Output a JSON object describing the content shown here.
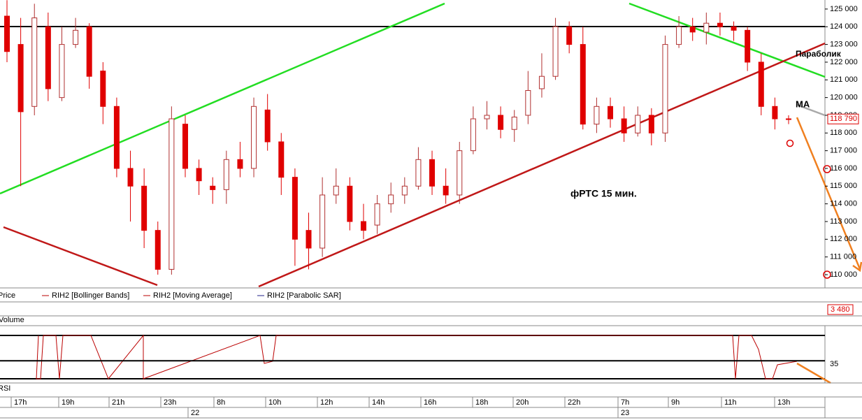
{
  "chart_data": {
    "type": "candlestick",
    "annotation": "фРТС  15 мин.",
    "labels": {
      "parabolic": "Параболик",
      "ma": "MA"
    },
    "legend": [
      "Price",
      "RIH2 [Bollinger Bands]",
      "RIH2 [Moving Average]",
      "RIH2 [Parabolic SAR]"
    ],
    "open": [
      124600,
      123000,
      119500,
      124000,
      120000,
      123000,
      124000,
      121500,
      119500,
      116000,
      115000,
      112500,
      110300,
      118500,
      116000,
      115000,
      114800,
      116500,
      116000,
      119300,
      117500,
      115500,
      112500,
      111500,
      114500,
      115000,
      113000,
      112800,
      114000,
      114500,
      115000,
      116500,
      115000,
      114500,
      117000,
      118800,
      119000,
      118200,
      119000,
      120500,
      121200,
      124000,
      123000,
      118500,
      119500,
      118800,
      118000,
      119000,
      118000,
      123000,
      124000,
      123700,
      124200,
      124000,
      123800,
      122000,
      119500,
      118800
    ],
    "high": [
      125500,
      124500,
      125300,
      124800,
      124000,
      124500,
      124200,
      122000,
      120000,
      117000,
      116000,
      113000,
      119500,
      119000,
      116500,
      115500,
      117000,
      117500,
      120000,
      120200,
      118000,
      116000,
      113500,
      115500,
      116000,
      115500,
      114000,
      114500,
      115200,
      115500,
      117200,
      117000,
      116000,
      117500,
      119500,
      119800,
      119500,
      119300,
      121500,
      122500,
      124500,
      124300,
      124000,
      120000,
      120000,
      119500,
      119500,
      119400,
      123500,
      124600,
      124500,
      124800,
      124800,
      124300,
      124000,
      122500,
      120000,
      119000
    ],
    "low": [
      122000,
      115000,
      119000,
      119800,
      119800,
      122800,
      120500,
      118500,
      115500,
      113000,
      111500,
      110000,
      110000,
      115500,
      114500,
      114000,
      114000,
      115500,
      115500,
      117000,
      114500,
      110500,
      110300,
      111000,
      114000,
      112500,
      112000,
      112300,
      113500,
      114000,
      114800,
      114500,
      114000,
      114000,
      116800,
      118200,
      117700,
      117500,
      118500,
      120000,
      121000,
      122500,
      118200,
      118000,
      118300,
      117500,
      117800,
      117300,
      117500,
      122800,
      123200,
      123000,
      123500,
      123200,
      121500,
      119000,
      118200,
      118500
    ],
    "close": [
      122600,
      119200,
      124500,
      120500,
      123000,
      123800,
      121200,
      119500,
      116000,
      115000,
      112500,
      110300,
      118800,
      116000,
      115300,
      114800,
      116500,
      116000,
      119500,
      117500,
      115500,
      112000,
      111500,
      114500,
      115000,
      113000,
      112500,
      114000,
      114500,
      115000,
      116500,
      115000,
      114500,
      117000,
      118800,
      119000,
      118200,
      118900,
      120400,
      121200,
      124000,
      123000,
      118500,
      119500,
      118800,
      118000,
      119000,
      118000,
      123000,
      124000,
      123700,
      124200,
      124000,
      123800,
      122000,
      119500,
      118800,
      118790
    ],
    "ylim": [
      109330,
      125510
    ],
    "yticks": [
      {
        "value": 110000,
        "label": "110 000"
      },
      {
        "value": 111000,
        "label": "111 000"
      },
      {
        "value": 112000,
        "label": "112 000"
      },
      {
        "value": 113000,
        "label": "113 000"
      },
      {
        "value": 114000,
        "label": "114 000"
      },
      {
        "value": 115000,
        "label": "115 000"
      },
      {
        "value": 116000,
        "label": "116 000"
      },
      {
        "value": 117000,
        "label": "117 000"
      },
      {
        "value": 118000,
        "label": "118 000"
      },
      {
        "value": 119000,
        "label": "119 000"
      },
      {
        "value": 120000,
        "label": "120 000"
      },
      {
        "value": 121000,
        "label": "121 000"
      },
      {
        "value": 122000,
        "label": "122 000"
      },
      {
        "value": 123000,
        "label": "123 000"
      },
      {
        "value": 124000,
        "label": "124 000"
      },
      {
        "value": 125000,
        "label": "125 000"
      }
    ],
    "last_price": {
      "value": 118790,
      "label": "118 790"
    },
    "volume_panel": {
      "label": "Volume",
      "last": "3 480"
    },
    "rsi_panel": {
      "label": "RSI",
      "ylim": [
        0,
        100
      ],
      "yticks": [
        35
      ]
    },
    "time_labels": [
      "17h",
      "19h",
      "21h",
      "23h",
      "8h",
      "10h",
      "12h",
      "14h",
      "16h",
      "18h",
      "20h",
      "22h",
      "7h",
      "9h",
      "11h",
      "13h"
    ],
    "dates": [
      "22",
      "23"
    ]
  }
}
